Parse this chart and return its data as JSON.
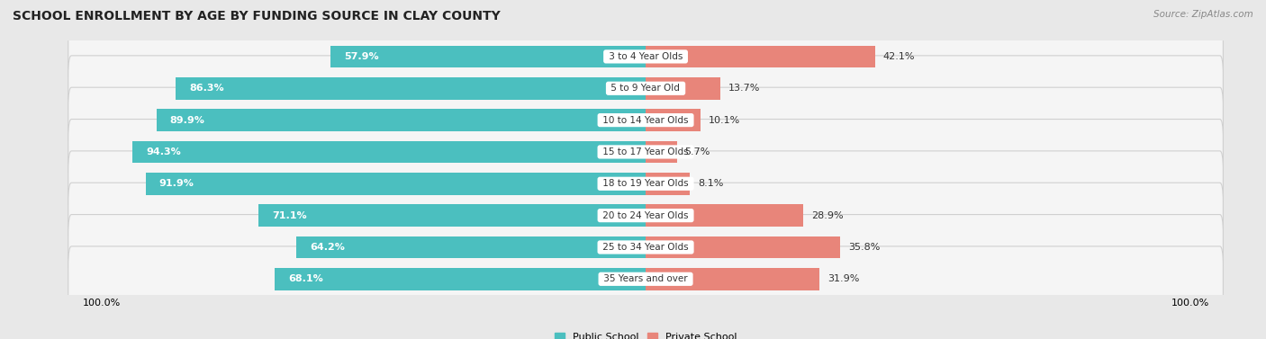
{
  "title": "SCHOOL ENROLLMENT BY AGE BY FUNDING SOURCE IN CLAY COUNTY",
  "source": "Source: ZipAtlas.com",
  "categories": [
    "3 to 4 Year Olds",
    "5 to 9 Year Old",
    "10 to 14 Year Olds",
    "15 to 17 Year Olds",
    "18 to 19 Year Olds",
    "20 to 24 Year Olds",
    "25 to 34 Year Olds",
    "35 Years and over"
  ],
  "public_values": [
    57.9,
    86.3,
    89.9,
    94.3,
    91.9,
    71.1,
    64.2,
    68.1
  ],
  "private_values": [
    42.1,
    13.7,
    10.1,
    5.7,
    8.1,
    28.9,
    35.8,
    31.9
  ],
  "public_color": "#4bbfbf",
  "private_color": "#e8857a",
  "public_label": "Public School",
  "private_label": "Private School",
  "bg_color": "#e8e8e8",
  "row_bg_color": "#f5f5f5",
  "row_border_color": "#d0d0d0",
  "title_fontsize": 10,
  "label_fontsize": 8,
  "value_fontsize": 8,
  "axis_label_left": "100.0%",
  "axis_label_right": "100.0%",
  "max_val": 100
}
